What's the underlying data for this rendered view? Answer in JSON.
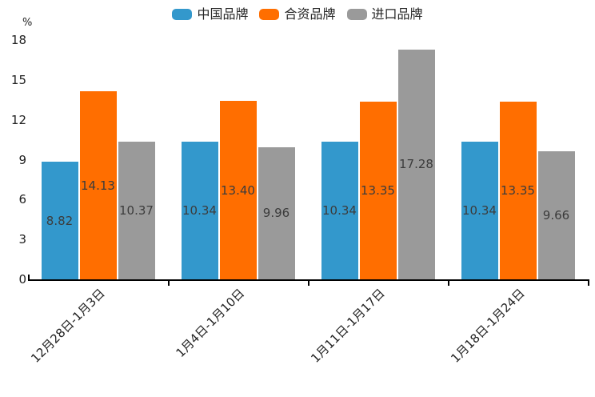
{
  "chart_data": {
    "type": "bar",
    "title": "",
    "ylabel": "%",
    "ylim": [
      0,
      18
    ],
    "yticks": [
      0,
      3,
      6,
      9,
      12,
      15,
      18
    ],
    "grid": false,
    "legend_position": "top-center",
    "categories": [
      "12月28日-1月3日",
      "1月4日-1月10日",
      "1月11日-1月17日",
      "1月18日-1月24日"
    ],
    "series": [
      {
        "name": "中国品牌",
        "color": "#3398CC",
        "values": [
          8.82,
          10.34,
          10.34,
          10.34
        ],
        "data_labels": [
          "8.82",
          "10.34",
          "10.34",
          "10.34"
        ]
      },
      {
        "name": "合资品牌",
        "color": "#FF6E00",
        "values": [
          14.13,
          13.4,
          13.35,
          13.35
        ],
        "data_labels": [
          "14.13",
          "13.40",
          "13.35",
          "13.35"
        ]
      },
      {
        "name": "进口品牌",
        "color": "#9A9A9A",
        "values": [
          10.37,
          9.96,
          17.28,
          9.66
        ],
        "data_labels": [
          "10.37",
          "9.96",
          "17.28",
          "9.66"
        ]
      }
    ],
    "axis_color": "#000000",
    "value_label_color": "#3C3C3C"
  }
}
